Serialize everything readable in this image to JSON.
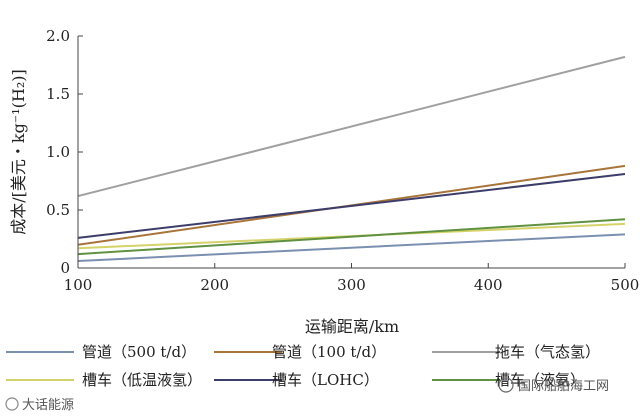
{
  "chart_data": {
    "type": "line",
    "xlabel": "运输距离/km",
    "ylabel": "成本/[美元・kg⁻¹(H₂)]",
    "xlim": [
      100,
      500
    ],
    "ylim": [
      0,
      2.0
    ],
    "x_ticks": [
      "100",
      "200",
      "300",
      "400",
      "500"
    ],
    "y_ticks": [
      "0",
      "0.5",
      "1.0",
      "1.5",
      "2.0"
    ],
    "grid": false,
    "legend_position": "bottom",
    "series": [
      {
        "name": "管道（500 t/d）",
        "color": "#7b8fb0",
        "x": [
          100,
          500
        ],
        "y": [
          0.06,
          0.29
        ]
      },
      {
        "name": "管道（100 t/d）",
        "color": "#a8743a",
        "x": [
          100,
          500
        ],
        "y": [
          0.2,
          0.88
        ]
      },
      {
        "name": "拖车（气态氢）",
        "color": "#a0a0a0",
        "x": [
          100,
          500
        ],
        "y": [
          0.62,
          1.82
        ]
      },
      {
        "name": "槽车（低温液氢）",
        "color": "#d6d26a",
        "x": [
          100,
          500
        ],
        "y": [
          0.17,
          0.38
        ]
      },
      {
        "name": "槽车（LOHC）",
        "color": "#3d3d6b",
        "x": [
          100,
          500
        ],
        "y": [
          0.26,
          0.81
        ]
      },
      {
        "name": "槽车（液氨）",
        "color": "#5f9140",
        "x": [
          100,
          500
        ],
        "y": [
          0.12,
          0.42
        ]
      }
    ]
  },
  "watermarks": {
    "left": "大话能源",
    "right": "国际船舶海工网"
  }
}
